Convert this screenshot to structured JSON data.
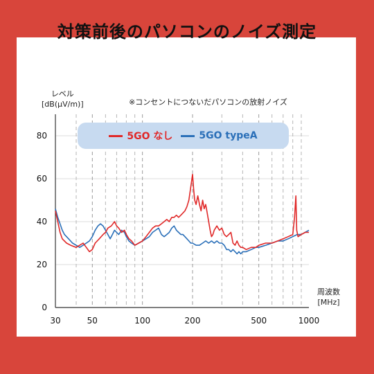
{
  "title": "対策前後のパソコンのノイズ測定",
  "chart_data": {
    "type": "line",
    "ylabel_line1": "レベル",
    "ylabel_line2": "[dB(μV/m)]",
    "note": "※コンセントにつないだパソコンの放射ノイズ",
    "xlabel_line1": "周波数",
    "xlabel_line2": "[MHz]",
    "x_scale": "log",
    "xlim": [
      30,
      1000
    ],
    "ylim": [
      0,
      90
    ],
    "xticks": [
      30,
      50,
      100,
      200,
      500,
      1000
    ],
    "xtick_labels": [
      "30",
      "50",
      "100",
      "200",
      "500",
      "1000"
    ],
    "yticks": [
      0,
      20,
      40,
      60,
      80
    ],
    "ytick_labels": [
      "0",
      "20",
      "40",
      "60",
      "80"
    ],
    "grid": "vertical dashed",
    "legend_position": "top-left",
    "series": [
      {
        "name": "5GO なし",
        "color": "#e02828",
        "points": [
          [
            30,
            45
          ],
          [
            31,
            40
          ],
          [
            32,
            35
          ],
          [
            33,
            32
          ],
          [
            35,
            30
          ],
          [
            37,
            29
          ],
          [
            40,
            28
          ],
          [
            42,
            29
          ],
          [
            44,
            30
          ],
          [
            46,
            28
          ],
          [
            48,
            26
          ],
          [
            50,
            27
          ],
          [
            52,
            30
          ],
          [
            55,
            32
          ],
          [
            58,
            34
          ],
          [
            60,
            35
          ],
          [
            62,
            37
          ],
          [
            65,
            38
          ],
          [
            68,
            40
          ],
          [
            70,
            38
          ],
          [
            72,
            37
          ],
          [
            75,
            35
          ],
          [
            78,
            36
          ],
          [
            80,
            34
          ],
          [
            83,
            32
          ],
          [
            86,
            31
          ],
          [
            90,
            29
          ],
          [
            95,
            30
          ],
          [
            100,
            31
          ],
          [
            105,
            33
          ],
          [
            110,
            35
          ],
          [
            115,
            37
          ],
          [
            120,
            38
          ],
          [
            125,
            38
          ],
          [
            130,
            39
          ],
          [
            135,
            40
          ],
          [
            140,
            41
          ],
          [
            145,
            40
          ],
          [
            150,
            42
          ],
          [
            155,
            42
          ],
          [
            160,
            43
          ],
          [
            165,
            42
          ],
          [
            170,
            43
          ],
          [
            175,
            44
          ],
          [
            180,
            45
          ],
          [
            185,
            47
          ],
          [
            190,
            50
          ],
          [
            195,
            56
          ],
          [
            200,
            62
          ],
          [
            203,
            55
          ],
          [
            206,
            50
          ],
          [
            210,
            48
          ],
          [
            215,
            52
          ],
          [
            220,
            48
          ],
          [
            225,
            45
          ],
          [
            230,
            50
          ],
          [
            235,
            46
          ],
          [
            240,
            48
          ],
          [
            245,
            44
          ],
          [
            250,
            40
          ],
          [
            255,
            36
          ],
          [
            260,
            33
          ],
          [
            265,
            34
          ],
          [
            270,
            36
          ],
          [
            280,
            38
          ],
          [
            290,
            36
          ],
          [
            300,
            37
          ],
          [
            310,
            34
          ],
          [
            320,
            33
          ],
          [
            330,
            34
          ],
          [
            340,
            35
          ],
          [
            350,
            30
          ],
          [
            360,
            29
          ],
          [
            370,
            31
          ],
          [
            380,
            29
          ],
          [
            390,
            28
          ],
          [
            400,
            28
          ],
          [
            420,
            27
          ],
          [
            450,
            28
          ],
          [
            480,
            28
          ],
          [
            500,
            29
          ],
          [
            550,
            30
          ],
          [
            600,
            30
          ],
          [
            650,
            31
          ],
          [
            700,
            32
          ],
          [
            750,
            33
          ],
          [
            800,
            34
          ],
          [
            820,
            42
          ],
          [
            835,
            52
          ],
          [
            845,
            36
          ],
          [
            860,
            33
          ],
          [
            900,
            34
          ],
          [
            950,
            35
          ],
          [
            1000,
            35
          ]
        ]
      },
      {
        "name": "5GO typeA",
        "color": "#2a6fb8",
        "points": [
          [
            30,
            46
          ],
          [
            31,
            42
          ],
          [
            32,
            39
          ],
          [
            33,
            36
          ],
          [
            34,
            34
          ],
          [
            36,
            32
          ],
          [
            38,
            30
          ],
          [
            40,
            29
          ],
          [
            42,
            28
          ],
          [
            44,
            29
          ],
          [
            46,
            30
          ],
          [
            48,
            31
          ],
          [
            50,
            33
          ],
          [
            52,
            36
          ],
          [
            54,
            38
          ],
          [
            56,
            39
          ],
          [
            58,
            38
          ],
          [
            60,
            36
          ],
          [
            62,
            34
          ],
          [
            64,
            32
          ],
          [
            66,
            34
          ],
          [
            68,
            36
          ],
          [
            70,
            35
          ],
          [
            72,
            34
          ],
          [
            75,
            36
          ],
          [
            78,
            35
          ],
          [
            80,
            33
          ],
          [
            83,
            31
          ],
          [
            86,
            30
          ],
          [
            90,
            29
          ],
          [
            95,
            30
          ],
          [
            100,
            31
          ],
          [
            105,
            32
          ],
          [
            110,
            33
          ],
          [
            115,
            35
          ],
          [
            120,
            36
          ],
          [
            125,
            37
          ],
          [
            130,
            34
          ],
          [
            135,
            33
          ],
          [
            140,
            34
          ],
          [
            145,
            35
          ],
          [
            150,
            37
          ],
          [
            155,
            38
          ],
          [
            160,
            36
          ],
          [
            165,
            35
          ],
          [
            170,
            34
          ],
          [
            175,
            34
          ],
          [
            180,
            33
          ],
          [
            185,
            32
          ],
          [
            190,
            31
          ],
          [
            195,
            30
          ],
          [
            200,
            30
          ],
          [
            210,
            29
          ],
          [
            220,
            29
          ],
          [
            230,
            30
          ],
          [
            240,
            31
          ],
          [
            250,
            30
          ],
          [
            260,
            31
          ],
          [
            270,
            30
          ],
          [
            280,
            31
          ],
          [
            290,
            30
          ],
          [
            300,
            30
          ],
          [
            310,
            29
          ],
          [
            320,
            27
          ],
          [
            330,
            27
          ],
          [
            340,
            26
          ],
          [
            350,
            27
          ],
          [
            360,
            26
          ],
          [
            370,
            25
          ],
          [
            380,
            26
          ],
          [
            390,
            25
          ],
          [
            400,
            26
          ],
          [
            420,
            26
          ],
          [
            450,
            27
          ],
          [
            480,
            28
          ],
          [
            500,
            28
          ],
          [
            550,
            29
          ],
          [
            600,
            30
          ],
          [
            650,
            31
          ],
          [
            700,
            31
          ],
          [
            750,
            32
          ],
          [
            800,
            33
          ],
          [
            850,
            34
          ],
          [
            900,
            34
          ],
          [
            950,
            35
          ],
          [
            1000,
            36
          ]
        ]
      }
    ]
  }
}
